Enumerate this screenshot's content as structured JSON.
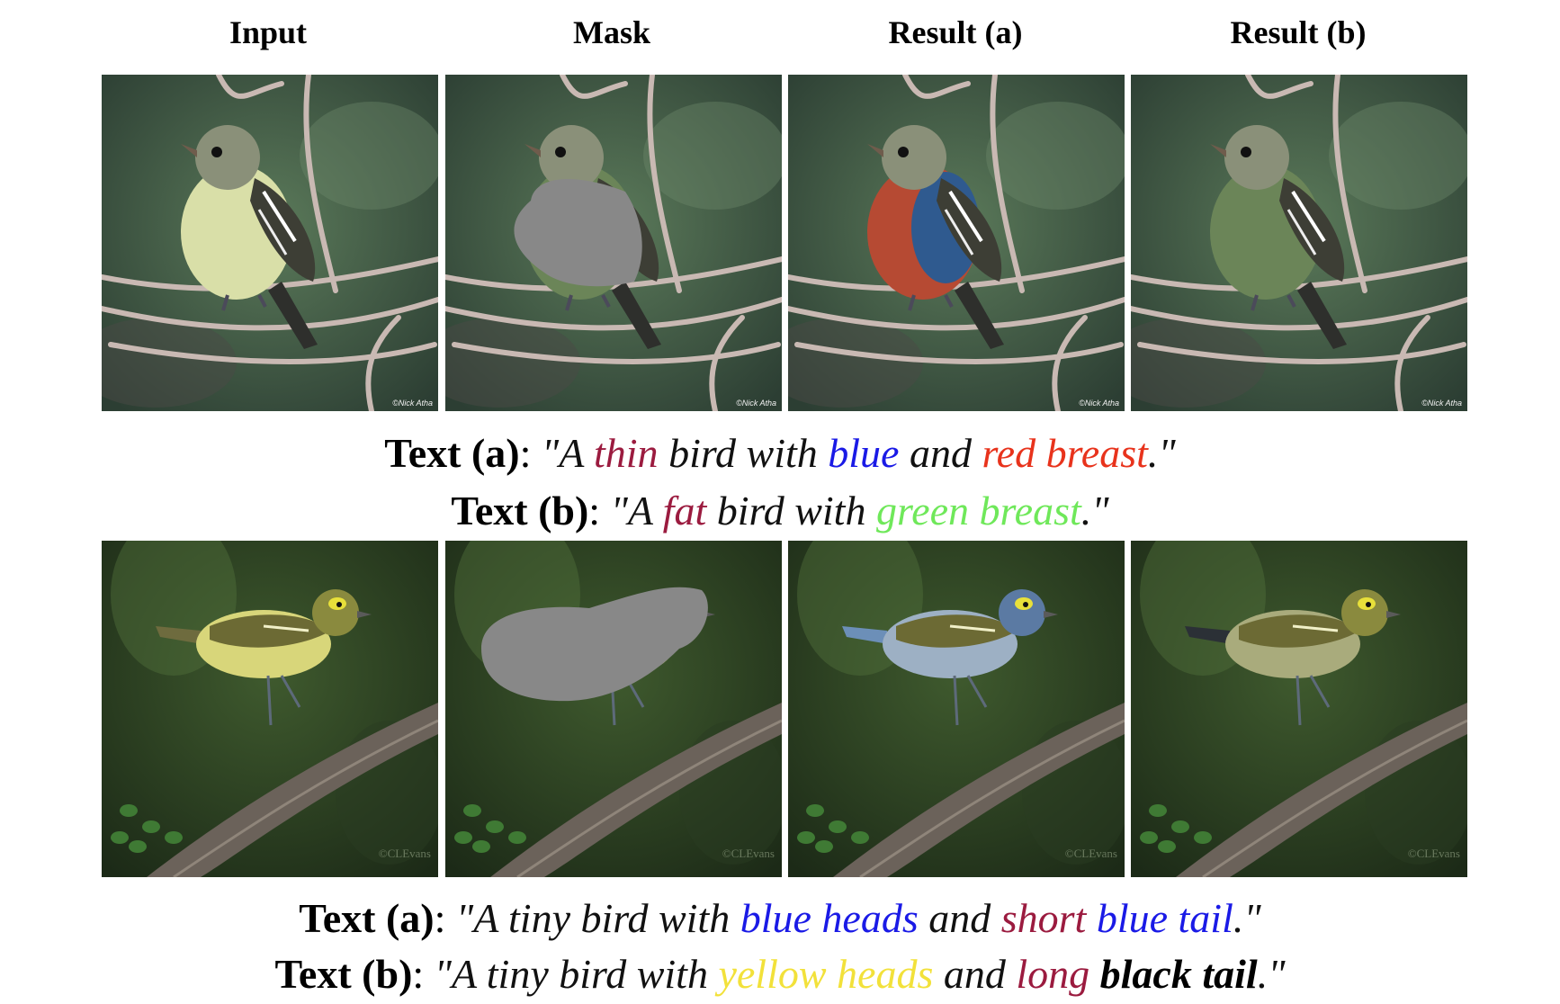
{
  "headers": [
    "Input",
    "Mask",
    "Result (a)",
    "Result (b)"
  ],
  "rows": [
    {
      "panels": [
        {
          "name": "row1-input",
          "watermark": "©Nick Atha"
        },
        {
          "name": "row1-mask",
          "watermark": "©Nick Atha"
        },
        {
          "name": "row1-result-a",
          "watermark": "©Nick Atha"
        },
        {
          "name": "row1-result-b",
          "watermark": "©Nick Atha"
        }
      ],
      "captions": [
        {
          "label": "Text (a)",
          "parts": [
            {
              "t": "\"A ",
              "c": "#111111"
            },
            {
              "t": "thin",
              "c": "#9b1b3f"
            },
            {
              "t": " bird with ",
              "c": "#111111"
            },
            {
              "t": "blue",
              "c": "#1a1ae6"
            },
            {
              "t": " and ",
              "c": "#111111"
            },
            {
              "t": "red breast",
              "c": "#e8331c"
            },
            {
              "t": ".\"",
              "c": "#111111"
            }
          ]
        },
        {
          "label": "Text (b)",
          "parts": [
            {
              "t": "\"A ",
              "c": "#111111"
            },
            {
              "t": "fat",
              "c": "#9b1b3f"
            },
            {
              "t": " bird with ",
              "c": "#111111"
            },
            {
              "t": "green breast",
              "c": "#6fe85a"
            },
            {
              "t": ".\"",
              "c": "#111111"
            }
          ]
        }
      ]
    },
    {
      "panels": [
        {
          "name": "row2-input",
          "watermark": "©CLEvans"
        },
        {
          "name": "row2-mask",
          "watermark": "©CLEvans"
        },
        {
          "name": "row2-result-a",
          "watermark": "©CLEvans"
        },
        {
          "name": "row2-result-b",
          "watermark": "©CLEvans"
        }
      ],
      "captions": [
        {
          "label": "Text (a)",
          "parts": [
            {
              "t": "\"A tiny bird with ",
              "c": "#111111"
            },
            {
              "t": "blue heads",
              "c": "#1a1ae6"
            },
            {
              "t": " and ",
              "c": "#111111"
            },
            {
              "t": "short",
              "c": "#9b1b3f"
            },
            {
              "t": " ",
              "c": "#111111"
            },
            {
              "t": "blue tail",
              "c": "#1a1ae6"
            },
            {
              "t": ".\"",
              "c": "#111111"
            }
          ]
        },
        {
          "label": "Text (b)",
          "parts": [
            {
              "t": "\"A tiny bird with ",
              "c": "#111111"
            },
            {
              "t": "yellow heads",
              "c": "#f2e13a"
            },
            {
              "t": " and ",
              "c": "#111111"
            },
            {
              "t": "long",
              "c": "#9b1b3f"
            },
            {
              "t": " ",
              "c": "#111111"
            },
            {
              "t": "black tail",
              "c": "#000000",
              "bold": true
            },
            {
              "t": ".\"",
              "c": "#111111"
            }
          ]
        }
      ]
    }
  ]
}
